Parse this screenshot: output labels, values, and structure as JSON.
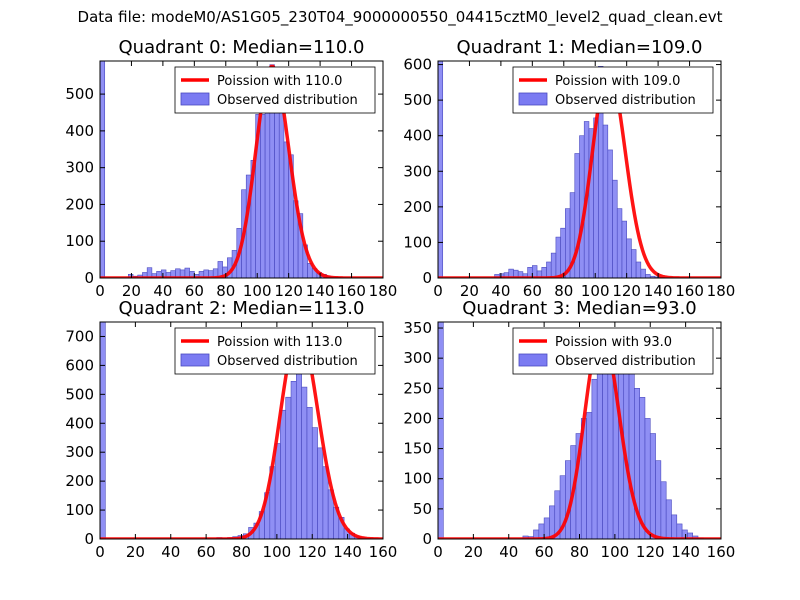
{
  "suptitle": "Data file: modeM0/AS1G05_230T04_9000000550_04415cztM0_level2_quad_clean.evt",
  "colors": {
    "hist_fill": "#7b7bf2",
    "hist_edge": "#4a4abf",
    "fit_line": "#ff0000"
  },
  "chart_data": [
    {
      "type": "bar",
      "title": "Quadrant 0: Median=110.0",
      "xlim": [
        0,
        180
      ],
      "ylim": [
        0,
        590
      ],
      "xticks": [
        0,
        20,
        40,
        60,
        80,
        100,
        120,
        140,
        160,
        180
      ],
      "yticks": [
        0,
        100,
        200,
        300,
        400,
        500
      ],
      "bin_width": 3,
      "bins": [
        0,
        3,
        6,
        9,
        12,
        15,
        18,
        21,
        24,
        27,
        30,
        33,
        36,
        39,
        42,
        45,
        48,
        51,
        54,
        57,
        60,
        63,
        66,
        69,
        72,
        75,
        78,
        81,
        84,
        87,
        90,
        93,
        96,
        99,
        102,
        105,
        108,
        111,
        114,
        117,
        120,
        123,
        126,
        129,
        132,
        135,
        138,
        141,
        144,
        147,
        150,
        153
      ],
      "values": [
        590,
        0,
        0,
        0,
        0,
        0,
        10,
        5,
        8,
        15,
        28,
        12,
        18,
        22,
        15,
        20,
        25,
        22,
        27,
        18,
        10,
        18,
        22,
        20,
        25,
        45,
        30,
        55,
        75,
        135,
        240,
        280,
        320,
        445,
        445,
        455,
        580,
        525,
        475,
        370,
        335,
        210,
        175,
        90,
        40,
        25,
        15,
        10,
        5,
        3,
        2,
        1
      ],
      "poisson_mean": 110.0,
      "poisson_peak": 575,
      "legend": [
        "Poission with 110.0",
        "Observed distribution"
      ]
    },
    {
      "type": "bar",
      "title": "Quadrant 1: Median=109.0",
      "xlim": [
        0,
        180
      ],
      "ylim": [
        0,
        610
      ],
      "xticks": [
        0,
        20,
        40,
        60,
        80,
        100,
        120,
        140,
        160,
        180
      ],
      "yticks": [
        0,
        100,
        200,
        300,
        400,
        500,
        600
      ],
      "bin_width": 3,
      "bins": [
        0,
        3,
        6,
        9,
        12,
        15,
        18,
        21,
        24,
        27,
        30,
        33,
        36,
        39,
        42,
        45,
        48,
        51,
        54,
        57,
        60,
        63,
        66,
        69,
        72,
        75,
        78,
        81,
        84,
        87,
        90,
        93,
        96,
        99,
        102,
        105,
        108,
        111,
        114,
        117,
        120,
        123,
        126,
        129,
        132,
        135,
        138,
        141,
        144,
        147,
        150
      ],
      "values": [
        610,
        0,
        0,
        0,
        0,
        0,
        0,
        0,
        0,
        0,
        0,
        0,
        10,
        12,
        15,
        25,
        22,
        18,
        12,
        30,
        35,
        20,
        30,
        45,
        70,
        115,
        140,
        195,
        240,
        350,
        400,
        440,
        420,
        450,
        595,
        430,
        360,
        275,
        195,
        160,
        110,
        80,
        45,
        25,
        10,
        5,
        3,
        2,
        1,
        0,
        0
      ],
      "poisson_mean": 109.0,
      "poisson_peak": 585,
      "legend": [
        "Poission with 109.0",
        "Observed distribution"
      ]
    },
    {
      "type": "bar",
      "title": "Quadrant 2: Median=113.0",
      "xlim": [
        0,
        160
      ],
      "ylim": [
        0,
        750
      ],
      "xticks": [
        0,
        20,
        40,
        60,
        80,
        100,
        120,
        140,
        160
      ],
      "yticks": [
        0,
        100,
        200,
        300,
        400,
        500,
        600,
        700
      ],
      "bin_width": 3,
      "bins": [
        0,
        3,
        6,
        9,
        12,
        15,
        18,
        21,
        24,
        27,
        30,
        33,
        36,
        39,
        42,
        45,
        48,
        51,
        54,
        57,
        60,
        63,
        66,
        69,
        72,
        75,
        78,
        81,
        84,
        87,
        90,
        93,
        96,
        99,
        102,
        105,
        108,
        111,
        114,
        117,
        120,
        123,
        126,
        129,
        132,
        135,
        138,
        141,
        144,
        147,
        150,
        153
      ],
      "values": [
        750,
        0,
        0,
        0,
        0,
        0,
        0,
        0,
        0,
        0,
        0,
        0,
        0,
        0,
        0,
        0,
        0,
        0,
        0,
        0,
        0,
        0,
        5,
        3,
        5,
        8,
        12,
        18,
        40,
        55,
        95,
        160,
        250,
        330,
        445,
        490,
        545,
        655,
        525,
        455,
        385,
        315,
        250,
        170,
        110,
        75,
        35,
        20,
        10,
        5,
        2,
        1
      ],
      "poisson_mean": 113.0,
      "poisson_peak": 720,
      "legend": [
        "Poission with 113.0",
        "Observed distribution"
      ]
    },
    {
      "type": "bar",
      "title": "Quadrant 3: Median=93.0",
      "xlim": [
        0,
        160
      ],
      "ylim": [
        0,
        360
      ],
      "xticks": [
        0,
        20,
        40,
        60,
        80,
        100,
        120,
        140,
        160
      ],
      "yticks": [
        0,
        50,
        100,
        150,
        200,
        250,
        300,
        350
      ],
      "bin_width": 3,
      "bins": [
        0,
        3,
        6,
        9,
        12,
        15,
        18,
        21,
        24,
        27,
        30,
        33,
        36,
        39,
        42,
        45,
        48,
        51,
        54,
        57,
        60,
        63,
        66,
        69,
        72,
        75,
        78,
        81,
        84,
        87,
        90,
        93,
        96,
        99,
        102,
        105,
        108,
        111,
        114,
        117,
        120,
        123,
        126,
        129,
        132,
        135,
        138,
        141,
        144,
        147
      ],
      "values": [
        360,
        0,
        0,
        0,
        0,
        0,
        0,
        0,
        0,
        0,
        0,
        0,
        0,
        0,
        0,
        0,
        5,
        4,
        15,
        25,
        35,
        55,
        80,
        105,
        130,
        155,
        175,
        200,
        210,
        265,
        290,
        320,
        300,
        320,
        330,
        340,
        325,
        250,
        235,
        200,
        175,
        130,
        95,
        65,
        40,
        25,
        15,
        10,
        5,
        2
      ],
      "poisson_mean": 93.0,
      "poisson_peak": 345,
      "legend": [
        "Poission with 93.0",
        "Observed distribution"
      ]
    }
  ]
}
